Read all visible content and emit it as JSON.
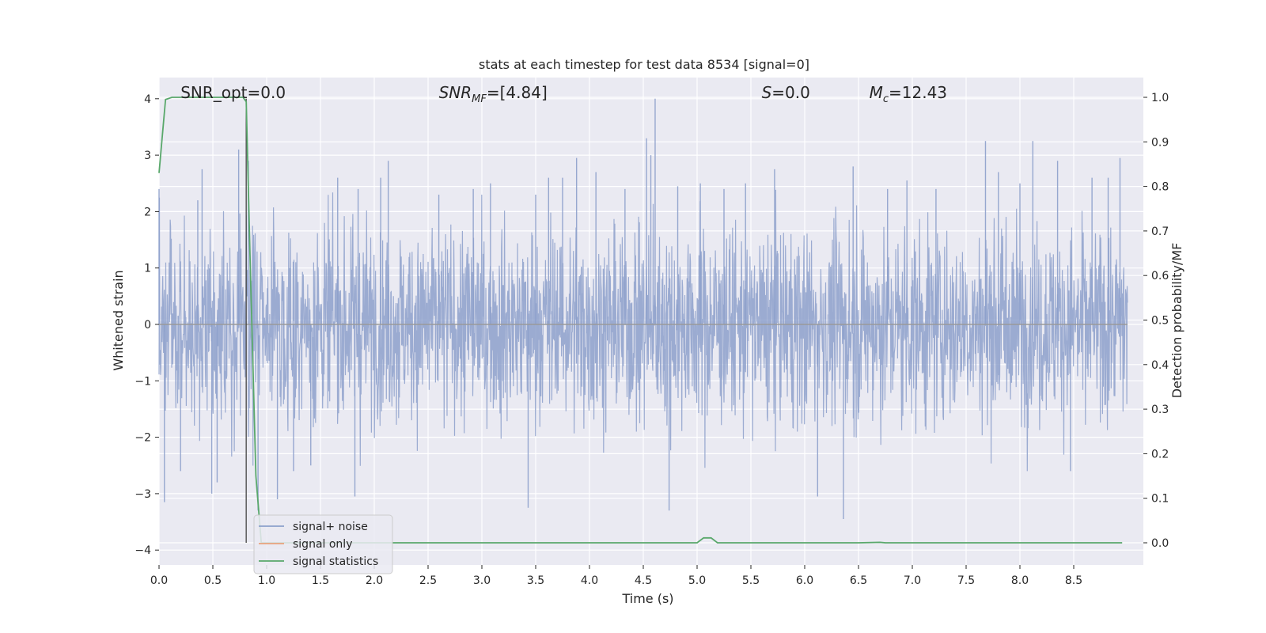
{
  "chart_data": {
    "type": "line",
    "title": "stats at each timestep for test data 8534 [signal=0]",
    "xlabel": "Time (s)",
    "ylabel": "Whitened strain",
    "y2label": "Detection probability/MF",
    "xlim": [
      0.0,
      9.0
    ],
    "ylim": [
      -4.25,
      4.4
    ],
    "y2lim": [
      -0.05,
      1.05
    ],
    "xticks": [
      "0.0",
      "0.5",
      "1.0",
      "1.5",
      "2.0",
      "2.5",
      "3.0",
      "3.5",
      "4.0",
      "4.5",
      "5.0",
      "5.5",
      "6.0",
      "6.5",
      "7.0",
      "7.5",
      "8.0",
      "8.5"
    ],
    "yticks": [
      "−4",
      "−3",
      "−2",
      "−1",
      "0",
      "1",
      "2",
      "3",
      "4"
    ],
    "y2ticks": [
      "0.0",
      "0.1",
      "0.2",
      "0.3",
      "0.4",
      "0.5",
      "0.6",
      "0.7",
      "0.8",
      "0.9",
      "1.0"
    ],
    "grid": true,
    "legend_position": "lower-left",
    "annotations": [
      {
        "text": "SNR_opt=0.0",
        "x": 0.2
      },
      {
        "text": "SNR",
        "sub": "MF",
        "rest": "=[4.84]",
        "x": 2.6
      },
      {
        "text": "S",
        "rest": "=0.0",
        "x": 5.6
      },
      {
        "text": "M",
        "sub": "c",
        "rest": "=12.43",
        "x": 6.6
      }
    ],
    "vline_x": 0.81,
    "series": [
      {
        "name": "signal+ noise",
        "color": "#8da0cb",
        "description_values": "whitened noise, approx Gaussian; extreme peaks listed",
        "peaks": [
          [
            0.0,
            2.4
          ],
          [
            0.05,
            -3.15
          ],
          [
            0.2,
            -2.6
          ],
          [
            0.36,
            2.2
          ],
          [
            0.4,
            2.75
          ],
          [
            0.49,
            -3.0
          ],
          [
            0.54,
            -2.8
          ],
          [
            0.74,
            3.1
          ],
          [
            0.83,
            2.9
          ],
          [
            0.92,
            -3.3
          ],
          [
            1.1,
            -3.1
          ],
          [
            1.25,
            -2.6
          ],
          [
            1.41,
            -2.5
          ],
          [
            1.66,
            2.6
          ],
          [
            1.82,
            -3.05
          ],
          [
            1.85,
            2.4
          ],
          [
            2.06,
            2.6
          ],
          [
            2.13,
            2.9
          ],
          [
            2.6,
            2.3
          ],
          [
            2.92,
            2.4
          ],
          [
            3.08,
            2.5
          ],
          [
            3.43,
            -3.25
          ],
          [
            3.5,
            2.3
          ],
          [
            3.62,
            2.6
          ],
          [
            3.75,
            2.6
          ],
          [
            3.88,
            2.95
          ],
          [
            4.06,
            2.7
          ],
          [
            4.33,
            2.4
          ],
          [
            4.53,
            3.3
          ],
          [
            4.57,
            3.0
          ],
          [
            4.61,
            4.0
          ],
          [
            4.74,
            -3.3
          ],
          [
            4.82,
            2.45
          ],
          [
            5.03,
            2.5
          ],
          [
            5.25,
            2.4
          ],
          [
            5.45,
            2.5
          ],
          [
            5.72,
            2.75
          ],
          [
            6.12,
            -3.05
          ],
          [
            6.36,
            -3.45
          ],
          [
            6.45,
            2.8
          ],
          [
            6.77,
            2.4
          ],
          [
            6.95,
            2.55
          ],
          [
            7.22,
            2.4
          ],
          [
            7.68,
            3.25
          ],
          [
            7.8,
            2.7
          ],
          [
            8.0,
            2.5
          ],
          [
            8.12,
            3.25
          ],
          [
            8.35,
            2.9
          ],
          [
            8.47,
            -2.6
          ],
          [
            8.67,
            2.6
          ],
          [
            8.82,
            2.6
          ],
          [
            8.93,
            2.95
          ]
        ]
      },
      {
        "name": "signal only",
        "color": "#e8a27c",
        "x": [
          0.0,
          9.0
        ],
        "y": [
          0.0,
          0.0
        ]
      },
      {
        "name": "signal statistics",
        "color": "#59a86b",
        "axis": "right",
        "x": [
          0.0,
          0.06,
          0.12,
          0.2,
          0.3,
          0.4,
          0.5,
          0.6,
          0.7,
          0.78,
          0.81,
          0.85,
          0.9,
          0.95,
          1.0,
          1.5,
          2.0,
          2.5,
          3.0,
          3.5,
          4.0,
          4.5,
          4.95,
          5.0,
          5.06,
          5.13,
          5.19,
          5.5,
          6.0,
          6.5,
          6.7,
          6.75,
          7.0,
          7.5,
          8.0,
          8.5,
          8.95
        ],
        "y": [
          0.83,
          0.995,
          1.0,
          1.0,
          1.0,
          1.0,
          1.0,
          1.0,
          1.0,
          1.0,
          0.99,
          0.6,
          0.15,
          0.0,
          0.0,
          0.0,
          0.0,
          0.0,
          0.0,
          0.0,
          0.0,
          0.0,
          0.0,
          0.0,
          0.011,
          0.011,
          0.0,
          0.0,
          0.0,
          0.0,
          0.001,
          0.0,
          0.0,
          0.0,
          0.0,
          0.0,
          0.0
        ]
      }
    ]
  }
}
